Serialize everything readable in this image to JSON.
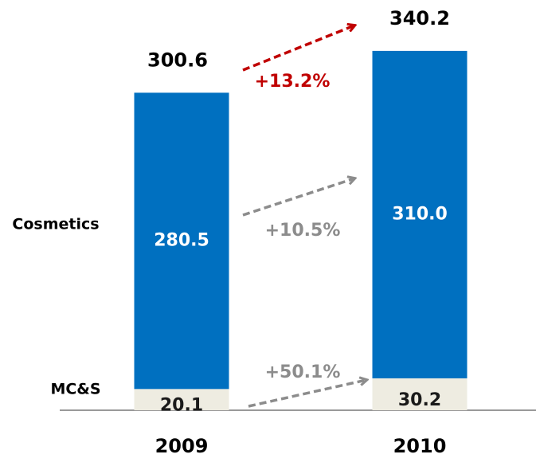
{
  "chart_data": {
    "type": "stacked_bar",
    "categories": [
      "2009",
      "2010"
    ],
    "series": [
      {
        "name": "MC&S",
        "color": "#eeece1",
        "label_color": "#1a1a1a",
        "values": [
          20.1,
          30.2
        ]
      },
      {
        "name": "Cosmetics",
        "color": "#0070c0",
        "label_color": "#ffffff",
        "values": [
          280.5,
          310.0
        ],
        "value_labels": [
          "280.5",
          "310.0"
        ]
      }
    ],
    "totals": [
      300.6,
      340.2
    ],
    "annotations": [
      {
        "text": "+13.2%",
        "color": "#c00000"
      },
      {
        "text": "+10.5%",
        "color": "#8c8c8c"
      },
      {
        "text": "+50.1%",
        "color": "#8c8c8c"
      }
    ]
  }
}
